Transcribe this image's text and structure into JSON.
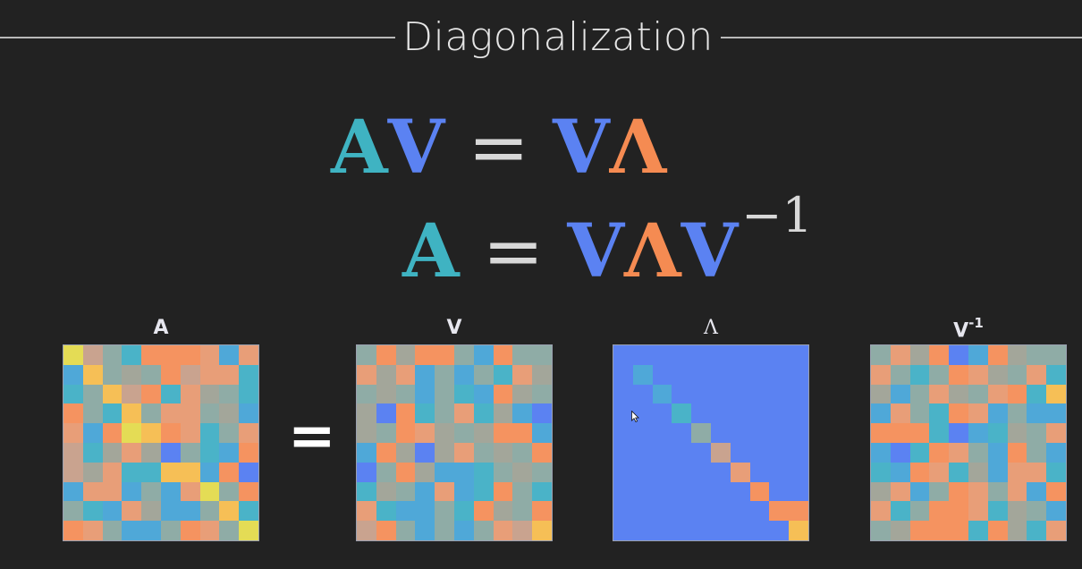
{
  "title": "Diagonalization",
  "equations": {
    "line1": {
      "lhs_a": "A",
      "lhs_v": "V",
      "op": "=",
      "rhs_v": "V",
      "rhs_lambda": "Λ"
    },
    "line2": {
      "lhs_a": "A",
      "op": "=",
      "rhs_v1": "V",
      "rhs_lambda": "Λ",
      "rhs_v2": "V",
      "exponent": "−1"
    }
  },
  "matrix_labels": {
    "a": "A",
    "v": "V",
    "lambda": "Λ",
    "vinv_base": "V",
    "vinv_exp": "-1"
  },
  "equals_sign": "=",
  "colors": {
    "background": "#222222",
    "teal": "#3fb3c2",
    "blue": "#5b82f2",
    "orange": "#f58b52",
    "palette": {
      "b": "#5b82f2",
      "c": "#4fa8d8",
      "t": "#4ab3c8",
      "g": "#8faca6",
      "k": "#a3a69a",
      "s": "#c9a38f",
      "p": "#e89e78",
      "o": "#f59360",
      "y": "#f6bf56",
      "l": "#e4dc55"
    }
  },
  "matrices": {
    "A": [
      "lsgtooopcp",
      "cygkgosppt",
      "tgysotpkgt",
      "ogtygppgkc",
      "pcolyoptgp",
      "stkpkbgtco",
      "skpttyycob",
      "cppcgcplgo",
      "gtcpkccgyt",
      "opgccgopgl"
    ],
    "V": [
      "gokoogcogg",
      "pkpcgcgtpk",
      "gkgcgtcokg",
      "kbotgptkcb",
      "kgopkgkooc",
      "cokbkpgkgo",
      "bgokcctgkg",
      "tkgcpctogt",
      "ptccgtokgo",
      "sogcgcgpsy"
    ],
    "Lambda": [
      "bbbbbbbbbb",
      "bcbbbbbbbb",
      "bbcbbbbbbb",
      "bbbtbbbbbb",
      "bbbbgbbbbb",
      "bbbbbsbbbb",
      "bbbbbbpbbb",
      "bbbbbbbobb",
      "bbbbbbbboo",
      "bbbbbbbbby"
    ],
    "Vinv": [
      "gpkobcokgg",
      "pgtgopkgpt",
      "kcgpkgpoty",
      "cpgtopcgcc",
      "oootbctkgp",
      "cbtopgcogc",
      "tcoptkcppt",
      "kpcgopgpco",
      "ptgooptkgc",
      "gkoootoktp"
    ]
  }
}
